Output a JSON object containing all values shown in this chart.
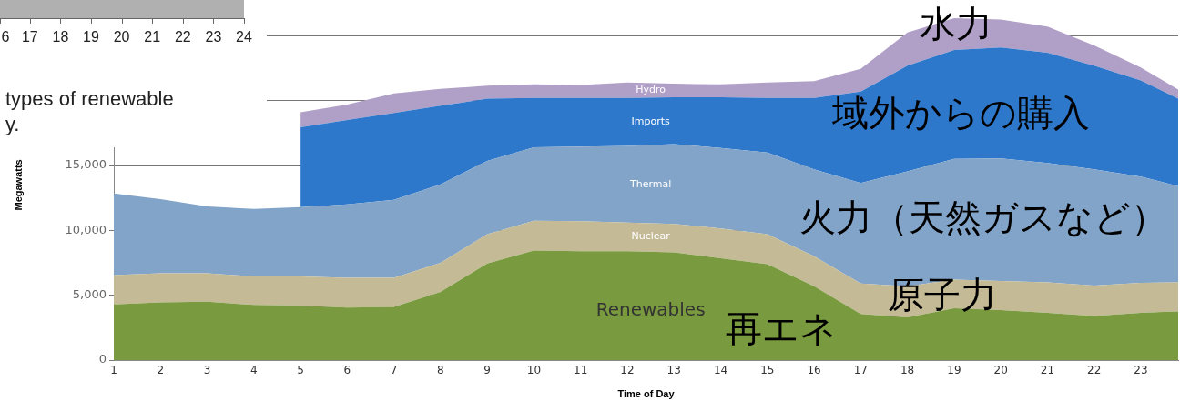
{
  "chart_data": {
    "type": "area",
    "stacked": true,
    "xlabel": "Time of Day",
    "ylabel": "Megawatts",
    "x": [
      1,
      2,
      3,
      4,
      5,
      6,
      7,
      8,
      9,
      10,
      11,
      12,
      13,
      14,
      15,
      16,
      17,
      18,
      19,
      20,
      21,
      22,
      23,
      23.8
    ],
    "xlim": [
      1,
      23.8
    ],
    "xticks": [
      1,
      2,
      3,
      4,
      5,
      6,
      7,
      8,
      9,
      10,
      11,
      12,
      13,
      14,
      15,
      16,
      17,
      18,
      19,
      20,
      21,
      22,
      23
    ],
    "ylim": [
      0,
      27000
    ],
    "yticks": [
      0,
      {
        "value": 5000,
        "label": "5,000"
      },
      {
        "value": 10000,
        "label": "10,000"
      },
      {
        "value": 15000,
        "label": "15,000"
      },
      {
        "value": 20000,
        "label": null
      },
      {
        "value": 25000,
        "label": null
      }
    ],
    "grid": "y",
    "legend": false,
    "series": [
      {
        "name": "Renewables",
        "color": "#7a9a3f",
        "values": [
          4300,
          4450,
          4500,
          4250,
          4200,
          4050,
          4100,
          5250,
          7450,
          8450,
          8400,
          8400,
          8300,
          7850,
          7400,
          5700,
          3550,
          3300,
          4000,
          3850,
          3650,
          3400,
          3650,
          3750
        ]
      },
      {
        "name": "Nuclear",
        "color": "#c4bb96",
        "values": [
          2250,
          2250,
          2200,
          2200,
          2250,
          2300,
          2250,
          2250,
          2250,
          2300,
          2300,
          2200,
          2200,
          2300,
          2300,
          2300,
          2350,
          2400,
          2200,
          2250,
          2350,
          2350,
          2300,
          2250
        ]
      },
      {
        "name": "Thermal",
        "color": "#82a4c9",
        "values": [
          6300,
          5700,
          5150,
          5200,
          5350,
          5650,
          6000,
          6050,
          5650,
          5650,
          5750,
          5900,
          6150,
          6200,
          6300,
          6700,
          7750,
          8850,
          9300,
          9450,
          9200,
          8950,
          8200,
          7400
        ]
      },
      {
        "name": "Imports",
        "color": "#2e78cc",
        "values": [
          null,
          null,
          null,
          null,
          6150,
          6500,
          6700,
          6050,
          4800,
          3800,
          3750,
          3700,
          3600,
          3900,
          4200,
          5500,
          7050,
          8150,
          8400,
          8550,
          8500,
          8000,
          7400,
          6750
        ]
      },
      {
        "name": "Hydro",
        "color": "#b09fc7",
        "values": [
          null,
          null,
          null,
          null,
          1150,
          1200,
          1500,
          1300,
          1000,
          1050,
          1000,
          1200,
          1050,
          1000,
          1200,
          1300,
          1750,
          2550,
          2450,
          2150,
          2000,
          1550,
          1000,
          700
        ]
      }
    ],
    "annotations": [
      "水力",
      "域外からの購入",
      "火力（天然ガスなど）",
      "原子力",
      "再エネ",
      "6 17 18 19 20 21 22 23 24",
      "types of renewable",
      "y."
    ]
  }
}
